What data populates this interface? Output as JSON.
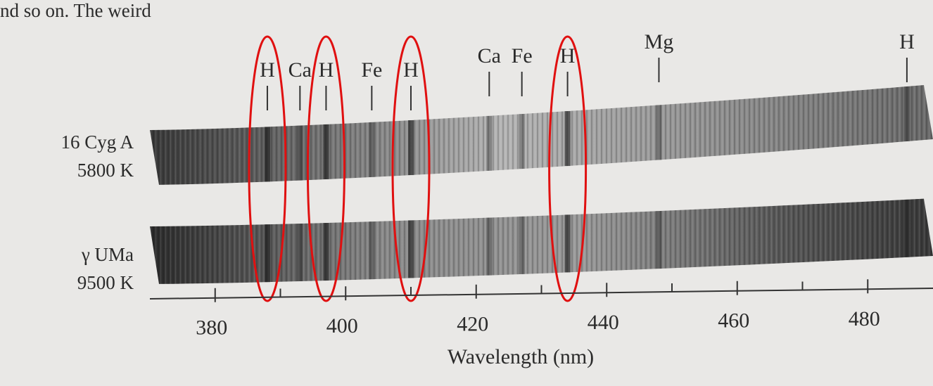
{
  "fragment_text": "nd so on. The weird",
  "spectra": [
    {
      "name": "16 Cyg A",
      "temperature": "5800 K"
    },
    {
      "name": "γ UMa",
      "temperature": "9500 K"
    }
  ],
  "lines": [
    {
      "label": "H",
      "wavelength": 388,
      "circled": true
    },
    {
      "label": "Ca",
      "wavelength": 393,
      "circled": false
    },
    {
      "label": "H",
      "wavelength": 397,
      "circled": true
    },
    {
      "label": "Fe",
      "wavelength": 404,
      "circled": false
    },
    {
      "label": "H",
      "wavelength": 410,
      "circled": true
    },
    {
      "label": "Ca",
      "wavelength": 422,
      "circled": false
    },
    {
      "label": "Fe",
      "wavelength": 427,
      "circled": false
    },
    {
      "label": "H",
      "wavelength": 434,
      "circled": true
    },
    {
      "label": "Mg",
      "wavelength": 448,
      "circled": false
    },
    {
      "label": "H",
      "wavelength": 486,
      "circled": false
    }
  ],
  "axis": {
    "label": "Wavelength (nm)",
    "xlim": [
      370,
      490
    ],
    "xticks": [
      380,
      400,
      420,
      440,
      460,
      480
    ],
    "minor_ticks": [
      390,
      410,
      430,
      450,
      470
    ]
  }
}
